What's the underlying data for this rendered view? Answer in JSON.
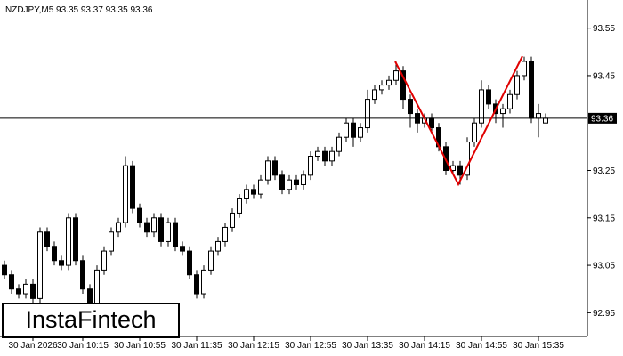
{
  "chart_data": {
    "type": "candlestick",
    "title": "NZDJPY,M5  93.35 93.37 93.35 93.36",
    "categories": [
      null,
      null,
      null,
      null,
      "30 Jan 2026",
      null,
      null,
      null,
      null,
      null,
      null,
      "30 Jan 10:15",
      null,
      null,
      null,
      null,
      null,
      null,
      null,
      "30 Jan 10:55",
      null,
      null,
      null,
      null,
      null,
      null,
      null,
      "30 Jan 11:35",
      null,
      null,
      null,
      null,
      null,
      null,
      null,
      "30 Jan 12:15",
      null,
      null,
      null,
      null,
      null,
      null,
      null,
      "30 Jan 12:55",
      null,
      null,
      null,
      null,
      null,
      null,
      null,
      "30 Jan 13:35",
      null,
      null,
      null,
      null,
      null,
      null,
      null,
      "30 Jan 14:15",
      null,
      null,
      null,
      null,
      null,
      null,
      null,
      "30 Jan 14:55",
      null,
      null,
      null,
      null,
      null,
      null,
      null,
      "30 Jan 15:35",
      null
    ],
    "open": [
      93.05,
      93.03,
      93.0,
      92.99,
      93.01,
      92.98,
      93.12,
      93.09,
      93.06,
      93.05,
      93.15,
      93.06,
      93.0,
      92.97,
      93.04,
      93.08,
      93.12,
      93.14,
      93.26,
      93.17,
      93.14,
      93.12,
      93.15,
      93.1,
      93.14,
      93.09,
      93.08,
      93.03,
      92.99,
      93.04,
      93.08,
      93.1,
      93.13,
      93.16,
      93.19,
      93.21,
      93.2,
      93.23,
      93.27,
      93.24,
      93.21,
      93.23,
      93.22,
      93.24,
      93.28,
      93.29,
      93.27,
      93.29,
      93.32,
      93.35,
      93.32,
      93.34,
      93.4,
      93.42,
      93.43,
      93.44,
      93.46,
      93.4,
      93.37,
      93.35,
      93.36,
      93.34,
      93.3,
      93.25,
      93.26,
      93.24,
      93.31,
      93.35,
      93.42,
      93.39,
      93.37,
      93.38,
      93.41,
      93.45,
      93.48,
      93.36,
      93.35
    ],
    "high": [
      93.06,
      93.04,
      93.01,
      93.02,
      93.02,
      93.13,
      93.13,
      93.1,
      93.07,
      93.16,
      93.16,
      93.07,
      93.01,
      93.05,
      93.09,
      93.13,
      93.15,
      93.28,
      93.27,
      93.18,
      93.15,
      93.16,
      93.16,
      93.15,
      93.15,
      93.1,
      93.09,
      93.04,
      93.05,
      93.09,
      93.11,
      93.14,
      93.17,
      93.2,
      93.22,
      93.22,
      93.24,
      93.28,
      93.28,
      93.25,
      93.24,
      93.24,
      93.25,
      93.29,
      93.3,
      93.3,
      93.3,
      93.33,
      93.36,
      93.36,
      93.35,
      93.42,
      93.43,
      93.44,
      93.45,
      93.48,
      93.47,
      93.41,
      93.38,
      93.37,
      93.37,
      93.35,
      93.31,
      93.27,
      93.27,
      93.32,
      93.36,
      93.44,
      93.43,
      93.4,
      93.39,
      93.42,
      93.46,
      93.49,
      93.49,
      93.39,
      93.37
    ],
    "low": [
      93.02,
      92.99,
      92.98,
      92.98,
      92.97,
      92.97,
      93.08,
      93.05,
      93.04,
      93.04,
      93.05,
      92.99,
      92.96,
      92.96,
      93.03,
      93.07,
      93.11,
      93.13,
      93.16,
      93.13,
      93.11,
      93.11,
      93.09,
      93.09,
      93.08,
      93.07,
      93.02,
      92.98,
      92.98,
      93.03,
      93.07,
      93.09,
      93.12,
      93.15,
      93.18,
      93.19,
      93.19,
      93.22,
      93.23,
      93.2,
      93.2,
      93.21,
      93.21,
      93.23,
      93.27,
      93.26,
      93.26,
      93.28,
      93.31,
      93.3,
      93.31,
      93.33,
      93.39,
      93.41,
      93.42,
      93.43,
      93.38,
      93.34,
      93.33,
      93.34,
      93.33,
      93.29,
      93.24,
      93.24,
      93.22,
      93.23,
      93.3,
      93.34,
      93.38,
      93.35,
      93.34,
      93.37,
      93.4,
      93.44,
      93.35,
      93.32,
      93.35
    ],
    "close": [
      93.03,
      93.0,
      92.99,
      93.01,
      92.98,
      93.12,
      93.09,
      93.06,
      93.05,
      93.15,
      93.06,
      93.0,
      92.97,
      93.04,
      93.08,
      93.12,
      93.14,
      93.26,
      93.17,
      93.14,
      93.12,
      93.15,
      93.1,
      93.14,
      93.09,
      93.08,
      93.03,
      92.99,
      93.04,
      93.08,
      93.1,
      93.13,
      93.16,
      93.19,
      93.21,
      93.2,
      93.23,
      93.27,
      93.24,
      93.21,
      93.23,
      93.22,
      93.24,
      93.28,
      93.29,
      93.27,
      93.29,
      93.32,
      93.35,
      93.32,
      93.34,
      93.4,
      93.42,
      93.43,
      93.44,
      93.46,
      93.4,
      93.37,
      93.35,
      93.36,
      93.34,
      93.3,
      93.25,
      93.26,
      93.24,
      93.31,
      93.35,
      93.42,
      93.39,
      93.37,
      93.38,
      93.41,
      93.45,
      93.48,
      93.36,
      93.37,
      93.36
    ],
    "ylim": [
      92.9,
      93.6
    ],
    "yticks": [
      92.95,
      93.05,
      93.15,
      93.25,
      93.45,
      93.55
    ],
    "current_price": 93.36,
    "color": "#000000"
  },
  "logo": "InstaFintech"
}
